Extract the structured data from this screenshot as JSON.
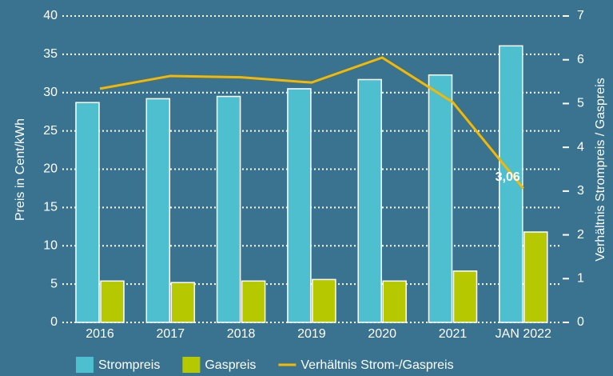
{
  "chart_data": {
    "type": "bar-line",
    "categories": [
      "2016",
      "2017",
      "2018",
      "2019",
      "2020",
      "2021",
      "JAN 2022"
    ],
    "series": [
      {
        "name": "Strompreis",
        "color": "#4dbfcf",
        "values": [
          28.7,
          29.2,
          29.5,
          30.5,
          31.7,
          32.3,
          36.1
        ]
      },
      {
        "name": "Gaspreis",
        "color": "#b5c800",
        "values": [
          5.4,
          5.2,
          5.4,
          5.6,
          5.4,
          6.7,
          11.8
        ]
      },
      {
        "name": "Verhältnis Strom-/Gaspreis",
        "color": "#f5b800",
        "axis": "y2",
        "values": [
          5.34,
          5.63,
          5.6,
          5.48,
          6.05,
          5.03,
          3.06
        ],
        "value_labels": [
          null,
          null,
          null,
          null,
          null,
          null,
          "3,06"
        ]
      }
    ],
    "ylabel": "Preis in Cent/kWh",
    "y2label": "Verhältnis Strompreis / Gaspreis",
    "ylim": [
      0,
      40
    ],
    "yticks": [
      0,
      5,
      10,
      15,
      20,
      25,
      30,
      35,
      40
    ],
    "y2lim": [
      0,
      7
    ],
    "y2ticks": [
      0,
      1,
      2,
      3,
      4,
      5,
      6,
      7
    ],
    "grid": true
  }
}
